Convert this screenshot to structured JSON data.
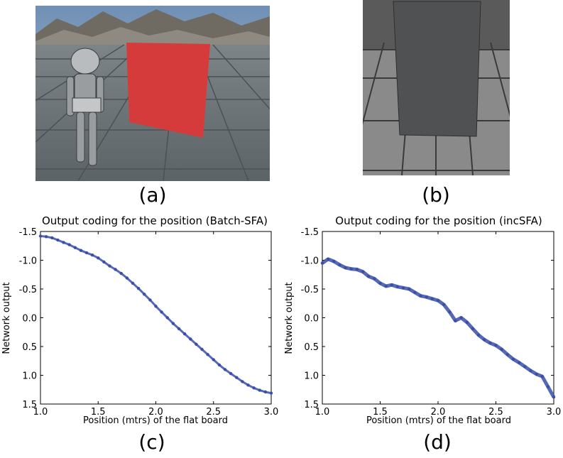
{
  "labels": {
    "a": "(a)",
    "b": "(b)",
    "c": "(c)",
    "d": "(d)"
  },
  "chart_data": [
    {
      "type": "scatter",
      "title": "Output coding for the position (Batch-SFA)",
      "xlabel": "Position (mtrs) of the flat board",
      "ylabel": "Network output",
      "xlim": [
        1.0,
        3.0
      ],
      "ylim": [
        1.5,
        -1.5
      ],
      "y_inverted": true,
      "xticks": [
        "1.0",
        "1.5",
        "2.0",
        "2.5",
        "3.0"
      ],
      "yticks": [
        "-1.5",
        "-1.0",
        "-0.5",
        "0.0",
        "0.5",
        "1.0",
        "1.5"
      ],
      "color": "#3a4fa8",
      "series": [
        {
          "x": [
            1.0,
            1.05,
            1.1,
            1.15,
            1.2,
            1.25,
            1.3,
            1.35,
            1.4,
            1.45,
            1.5,
            1.55,
            1.6,
            1.65,
            1.7,
            1.75,
            1.8,
            1.85,
            1.9,
            1.95,
            2.0,
            2.05,
            2.1,
            2.15,
            2.2,
            2.25,
            2.3,
            2.35,
            2.4,
            2.45,
            2.5,
            2.55,
            2.6,
            2.65,
            2.7,
            2.75,
            2.8,
            2.85,
            2.9,
            2.95,
            3.0
          ],
          "y": [
            -1.42,
            -1.41,
            -1.39,
            -1.35,
            -1.31,
            -1.27,
            -1.22,
            -1.17,
            -1.13,
            -1.09,
            -1.04,
            -0.97,
            -0.9,
            -0.84,
            -0.77,
            -0.69,
            -0.6,
            -0.51,
            -0.41,
            -0.31,
            -0.2,
            -0.1,
            0.0,
            0.1,
            0.19,
            0.28,
            0.37,
            0.46,
            0.55,
            0.64,
            0.73,
            0.82,
            0.9,
            0.97,
            1.04,
            1.11,
            1.17,
            1.22,
            1.26,
            1.29,
            1.31
          ]
        }
      ]
    },
    {
      "type": "scatter",
      "title": "Output coding for the position (incSFA)",
      "xlabel": "Position (mtrs) of the flat board",
      "ylabel": "Network output",
      "xlim": [
        1.0,
        3.0
      ],
      "ylim": [
        1.5,
        -1.5
      ],
      "y_inverted": true,
      "xticks": [
        "1.0",
        "1.5",
        "2.0",
        "2.5",
        "3.0"
      ],
      "yticks": [
        "-1.5",
        "-1.0",
        "-0.5",
        "0.0",
        "0.5",
        "1.0",
        "1.5"
      ],
      "color": "#3a4fa8",
      "series": [
        {
          "x": [
            1.0,
            1.05,
            1.1,
            1.15,
            1.2,
            1.25,
            1.3,
            1.35,
            1.4,
            1.45,
            1.5,
            1.55,
            1.6,
            1.65,
            1.7,
            1.75,
            1.8,
            1.85,
            1.9,
            1.95,
            2.0,
            2.05,
            2.1,
            2.15,
            2.2,
            2.25,
            2.3,
            2.35,
            2.4,
            2.45,
            2.5,
            2.55,
            2.6,
            2.65,
            2.7,
            2.75,
            2.8,
            2.85,
            2.9,
            2.95,
            3.0
          ],
          "y": [
            -0.95,
            -1.02,
            -0.98,
            -0.92,
            -0.87,
            -0.85,
            -0.84,
            -0.8,
            -0.72,
            -0.68,
            -0.6,
            -0.55,
            -0.57,
            -0.54,
            -0.52,
            -0.5,
            -0.44,
            -0.38,
            -0.36,
            -0.33,
            -0.3,
            -0.23,
            -0.1,
            0.05,
            0.0,
            0.08,
            0.19,
            0.3,
            0.38,
            0.44,
            0.48,
            0.55,
            0.64,
            0.72,
            0.78,
            0.85,
            0.92,
            0.98,
            1.02,
            1.2,
            1.38
          ]
        }
      ]
    }
  ]
}
